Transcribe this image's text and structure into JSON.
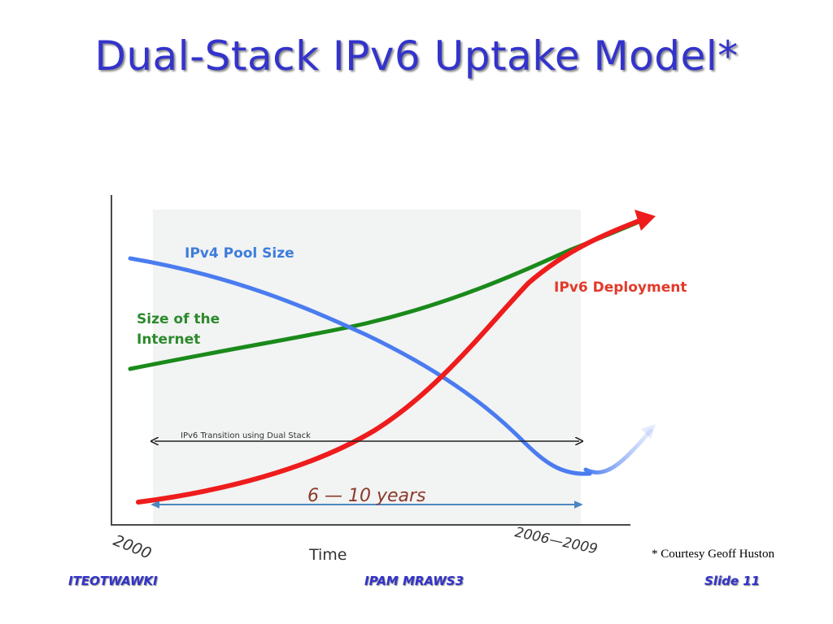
{
  "slide": {
    "title": "Dual-Stack IPv6 Uptake Model*",
    "courtesy": "* Courtesy Geoff Huston"
  },
  "footer": {
    "left": "ITEOTWAWKI",
    "center": "IPAM MRAWS3",
    "right": "Slide 11"
  },
  "diagram": {
    "labels": {
      "ipv4_pool": "IPv4 Pool Size",
      "internet_line1": "Size of the",
      "internet_line2": "Internet",
      "ipv6_deployment": "IPv6 Deployment",
      "transition": "IPv6 Transition using Dual Stack",
      "years": "6 — 10 years",
      "x_axis": "Time",
      "start_year": "2000",
      "end_years": "2006—2009"
    },
    "colors": {
      "ipv4_pool": "#4a7cf0",
      "internet": "#1a8a1a",
      "ipv6_deployment": "#ee1c1c",
      "label_blue": "#3d7ddb",
      "label_green": "#2c8a2c",
      "label_red": "#e23a2a",
      "years_text": "#8a3b2a",
      "years_arrow": "#4a86c0",
      "shaded_region": "#f2f3f3"
    }
  }
}
